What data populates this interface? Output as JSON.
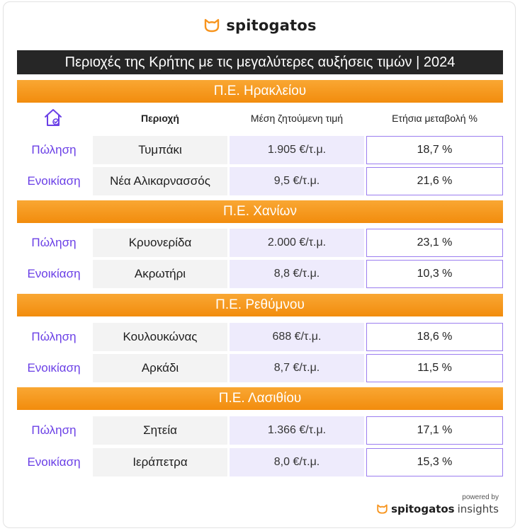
{
  "brand": {
    "name": "spitogatos",
    "icon": "cat-icon"
  },
  "title": "Περιοχές της Κρήτης με τις μεγαλύτερες αυξήσεις τιμών | 2024",
  "headers": {
    "icon": "house-check-icon",
    "area": "Περιοχή",
    "price": "Μέση ζητούμενη τιμή",
    "change": "Ετήσια μεταβολή %"
  },
  "regions": [
    {
      "name": "Π.Ε. Ηρακλείου",
      "rows": [
        {
          "type": "Πώληση",
          "area": "Τυμπάκι",
          "price": "1.905 €/τ.μ.",
          "change": "18,7 %"
        },
        {
          "type": "Ενοικίαση",
          "area": "Νέα Αλικαρνασσός",
          "price": "9,5 €/τ.μ.",
          "change": "21,6 %"
        }
      ]
    },
    {
      "name": "Π.Ε. Χανίων",
      "rows": [
        {
          "type": "Πώληση",
          "area": "Κρυονερίδα",
          "price": "2.000 €/τ.μ.",
          "change": "23,1 %"
        },
        {
          "type": "Ενοικίαση",
          "area": "Ακρωτήρι",
          "price": "8,8 €/τ.μ.",
          "change": "10,3 %"
        }
      ]
    },
    {
      "name": "Π.Ε. Ρεθύμνου",
      "rows": [
        {
          "type": "Πώληση",
          "area": "Κουλουκώνας",
          "price": "688 €/τ.μ.",
          "change": "18,6 %"
        },
        {
          "type": "Ενοικίαση",
          "area": "Αρκάδι",
          "price": "8,7 €/τ.μ.",
          "change": "11,5 %"
        }
      ]
    },
    {
      "name": "Π.Ε. Λασιθίου",
      "rows": [
        {
          "type": "Πώληση",
          "area": "Σητεία",
          "price": "1.366 €/τ.μ.",
          "change": "17,1 %"
        },
        {
          "type": "Ενοικίαση",
          "area": "Ιεράπετρα",
          "price": "8,0 €/τ.μ.",
          "change": "15,3 %"
        }
      ]
    }
  ],
  "footer": {
    "powered_by": "powered by",
    "brand": "spitogatos",
    "suffix": "insights"
  },
  "colors": {
    "orange": "#f7941d",
    "purple": "#6a3fe6",
    "dark": "#262626"
  }
}
